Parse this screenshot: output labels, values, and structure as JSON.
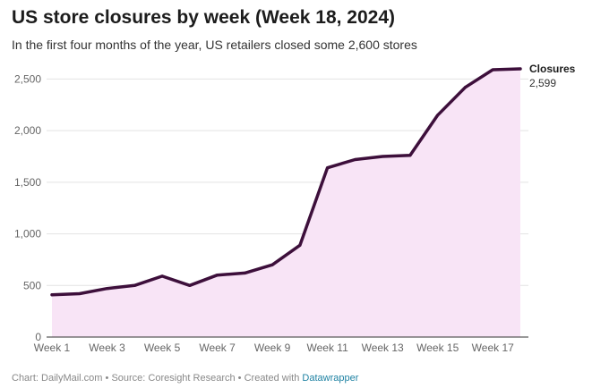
{
  "chart_data": {
    "type": "area",
    "title": "US store closures by week (Week 18, 2024)",
    "subtitle": "In the first four months of the year, US retailers closed some 2,600 stores",
    "x": [
      1,
      2,
      3,
      4,
      5,
      6,
      7,
      8,
      9,
      10,
      11,
      12,
      13,
      14,
      15,
      16,
      17,
      18
    ],
    "x_tick_values": [
      1,
      3,
      5,
      7,
      9,
      11,
      13,
      15,
      17
    ],
    "x_tick_labels": [
      "Week 1",
      "Week 3",
      "Week 5",
      "Week 7",
      "Week 9",
      "Week 11",
      "Week 13",
      "Week 15",
      "Week 17"
    ],
    "series": [
      {
        "name": "Closures",
        "values": [
          410,
          420,
          470,
          500,
          590,
          500,
          600,
          620,
          700,
          890,
          1640,
          1720,
          1750,
          1760,
          2150,
          2420,
          2590,
          2599
        ],
        "end_label": "2,599"
      }
    ],
    "ylim": [
      0,
      2599
    ],
    "y_ticks": [
      0,
      500,
      1000,
      1500,
      2000,
      2500
    ],
    "y_tick_labels": [
      "0",
      "500",
      "1,000",
      "1,500",
      "2,000",
      "2,500"
    ],
    "xlabel": "",
    "ylabel": "",
    "grid": true,
    "colors": {
      "line": "#3d0f3b",
      "fill": "#f8e4f6",
      "grid": "#e3e3e3",
      "axis": "#333333"
    }
  },
  "footer": {
    "chart_credit": "Chart: DailyMail.com",
    "separator": " • ",
    "source": "Source: Coresight Research",
    "created_with": "Created with ",
    "tool_link": "Datawrapper"
  }
}
